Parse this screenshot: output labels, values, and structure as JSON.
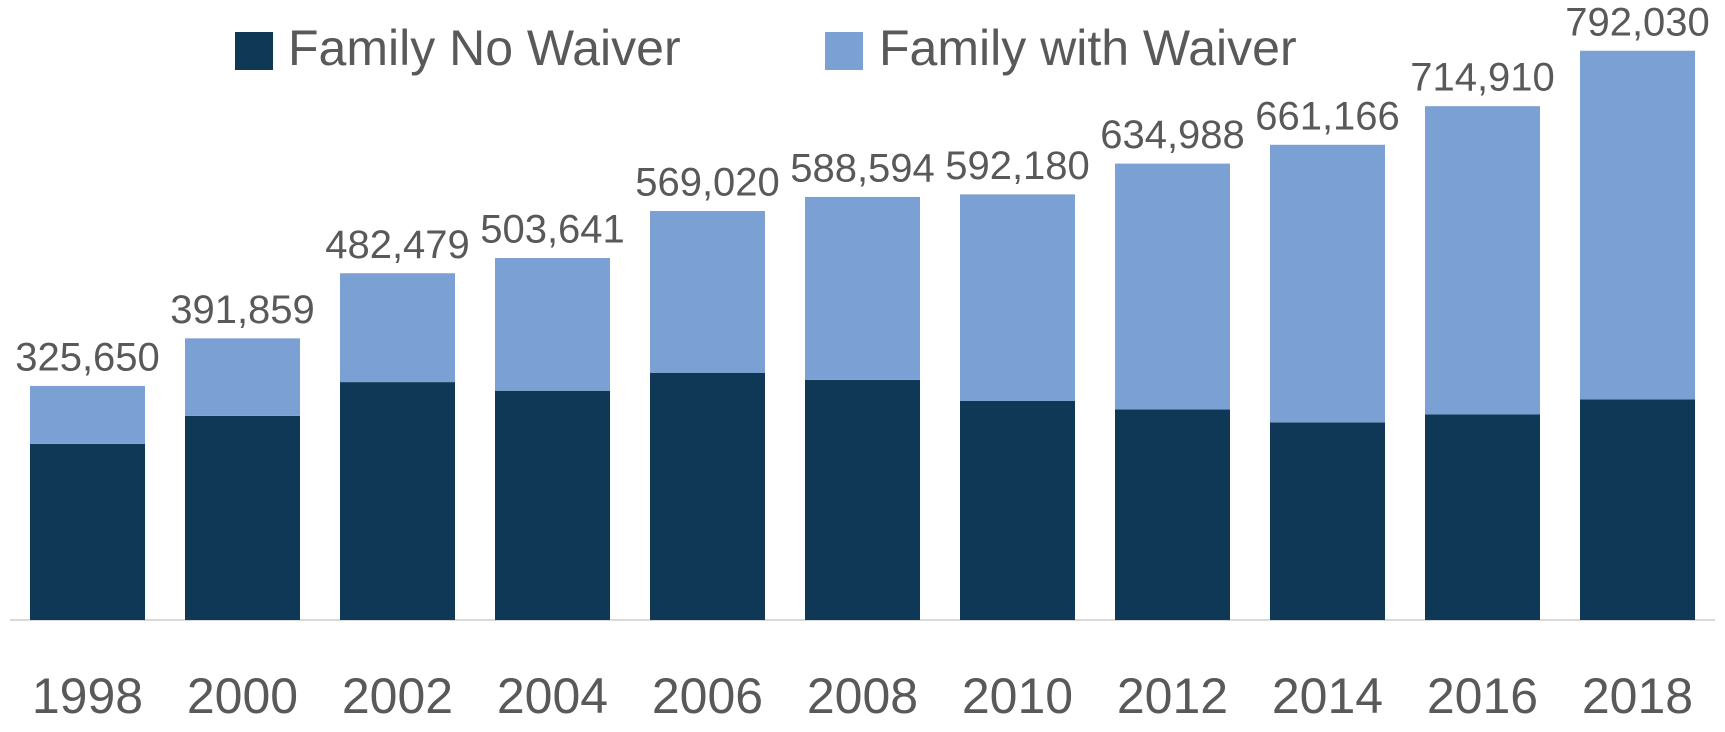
{
  "chart_data": {
    "type": "stacked_bar",
    "categories": [
      "1998",
      "2000",
      "2002",
      "2004",
      "2006",
      "2008",
      "2010",
      "2012",
      "2014",
      "2016",
      "2018"
    ],
    "series": [
      {
        "name": "Family No Waiver",
        "color": "#0f3857",
        "values": [
          245000,
          284000,
          331000,
          319000,
          344000,
          334000,
          305000,
          293000,
          275000,
          286000,
          307000
        ]
      },
      {
        "name": "Family with Waiver",
        "color": "#7ba1d4",
        "values": [
          80650,
          107859,
          151479,
          184641,
          225020,
          254594,
          287180,
          341988,
          386166,
          428910,
          485030
        ]
      }
    ],
    "totals": [
      325650,
      391859,
      482479,
      503641,
      569020,
      588594,
      592180,
      634988,
      661166,
      714910,
      792030
    ],
    "total_labels": [
      "325,650",
      "391,859",
      "482,479",
      "503,641",
      "569,020",
      "588,594",
      "592,180",
      "634,988",
      "661,166",
      "714,910",
      "792,030"
    ],
    "ylim": [
      0,
      800000
    ],
    "legend": "top"
  }
}
